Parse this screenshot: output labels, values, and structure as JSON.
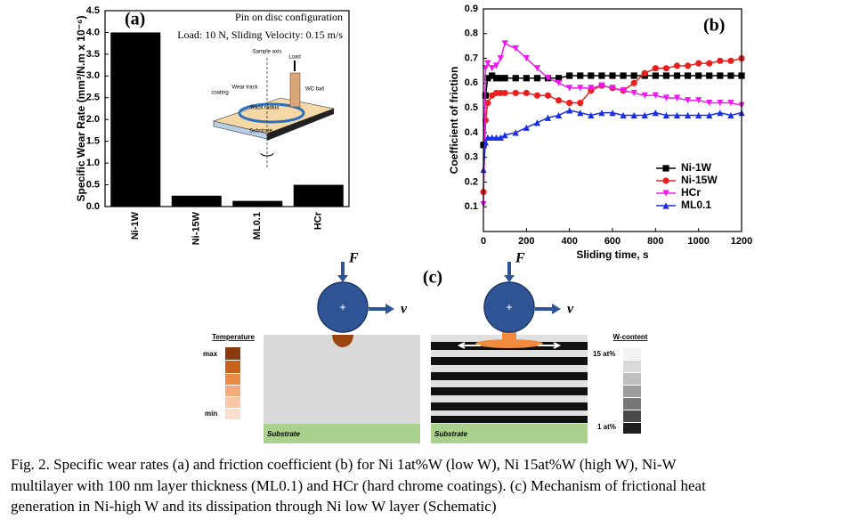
{
  "chart_data": [
    {
      "type": "bar",
      "panel_label": "(a)",
      "y_label": "Specific Wear Rate (mm³/N.m x 10⁻⁶)",
      "categories": [
        "Ni-1W",
        "Ni-15W",
        "ML0.1",
        "HCr"
      ],
      "values": [
        4.0,
        0.25,
        0.13,
        0.5
      ],
      "color": "#000000",
      "ylim": [
        0,
        4.5
      ],
      "yticks": [
        {
          "value": 0,
          "label": "0.0"
        },
        0.5,
        {
          "value": 1,
          "label": "1.0"
        },
        1.5,
        {
          "value": 2,
          "label": "2.0"
        },
        2.5,
        {
          "value": 3,
          "label": "3.0"
        },
        3.5,
        {
          "value": 4,
          "label": "4.0"
        },
        4.5
      ],
      "annotations": [
        "Pin on disc configuration",
        "Load: 10 N, Sliding Velocity: 0.15 m/s",
        "Sample axis",
        "Load",
        "Wear track",
        "coating",
        "WC ball",
        "Track radius",
        "Substrate"
      ]
    },
    {
      "type": "line",
      "panel_label": "(b)",
      "x_label": "Sliding time, s",
      "y_label": "Coefficient of friction",
      "x": [
        0,
        10,
        20,
        40,
        60,
        80,
        100,
        150,
        200,
        250,
        300,
        350,
        400,
        450,
        500,
        550,
        600,
        650,
        700,
        750,
        800,
        850,
        900,
        950,
        1000,
        1050,
        1100,
        1150,
        1200
      ],
      "series": [
        {
          "name": "Ni-1W",
          "color": "#000000",
          "marker": "square",
          "values": [
            0.35,
            0.55,
            0.62,
            0.63,
            0.62,
            0.62,
            0.62,
            0.62,
            0.62,
            0.62,
            0.62,
            0.62,
            0.63,
            0.63,
            0.63,
            0.63,
            0.63,
            0.63,
            0.63,
            0.63,
            0.63,
            0.63,
            0.63,
            0.63,
            0.63,
            0.63,
            0.63,
            0.63,
            0.63
          ]
        },
        {
          "name": "Ni-15W",
          "color": "#e8201e",
          "marker": "circle",
          "values": [
            0.16,
            0.45,
            0.52,
            0.55,
            0.56,
            0.56,
            0.56,
            0.56,
            0.56,
            0.55,
            0.55,
            0.53,
            0.52,
            0.52,
            0.57,
            0.59,
            0.58,
            0.57,
            0.6,
            0.64,
            0.66,
            0.66,
            0.67,
            0.67,
            0.68,
            0.68,
            0.69,
            0.69,
            0.7
          ]
        },
        {
          "name": "HCr",
          "color": "#ee1aee",
          "marker": "triangle-down",
          "values": [
            0.11,
            0.66,
            0.68,
            0.66,
            0.67,
            0.7,
            0.76,
            0.74,
            0.7,
            0.66,
            0.62,
            0.6,
            0.58,
            0.58,
            0.58,
            0.59,
            0.58,
            0.57,
            0.56,
            0.55,
            0.55,
            0.54,
            0.54,
            0.53,
            0.53,
            0.52,
            0.52,
            0.52,
            0.51
          ]
        },
        {
          "name": "ML0.1",
          "color": "#1a2ee8",
          "marker": "triangle-up",
          "values": [
            0.25,
            0.36,
            0.38,
            0.38,
            0.38,
            0.38,
            0.39,
            0.4,
            0.42,
            0.44,
            0.46,
            0.47,
            0.49,
            0.48,
            0.47,
            0.48,
            0.48,
            0.47,
            0.47,
            0.47,
            0.48,
            0.47,
            0.47,
            0.47,
            0.47,
            0.47,
            0.48,
            0.47,
            0.48
          ]
        }
      ],
      "xlim": [
        0,
        1200
      ],
      "xticks": [
        0,
        200,
        400,
        600,
        800,
        1000,
        1200
      ],
      "ylim": [
        0,
        0.9
      ],
      "yticks": [
        0.1,
        0.2,
        0.3,
        0.4,
        0.5,
        0.6,
        0.7,
        0.8,
        0.9
      ],
      "legend": "lower right"
    }
  ],
  "schematic": {
    "panel_label": "(c)",
    "left": {
      "force": "F",
      "velocity": "v",
      "substrate": "Substrate"
    },
    "right": {
      "force": "F",
      "velocity": "v",
      "substrate": "Substrate"
    },
    "temperature_title": "Temperature",
    "temperature_max": "max",
    "temperature_min": "min",
    "w_content_title": "W-content",
    "w_high": "15 at%",
    "w_low": "1 at%"
  },
  "caption": {
    "lines": [
      "Fig. 2. Specific wear rates (a) and friction coefficient (b) for Ni 1at%W (low W), Ni 15at%W (high W), Ni-W",
      "multilayer with 100 nm layer thickness (ML0.1) and HCr (hard chrome coatings). (c) Mechanism of frictional heat",
      "generation in Ni-high W and its dissipation through Ni low W layer (Schematic)"
    ]
  }
}
